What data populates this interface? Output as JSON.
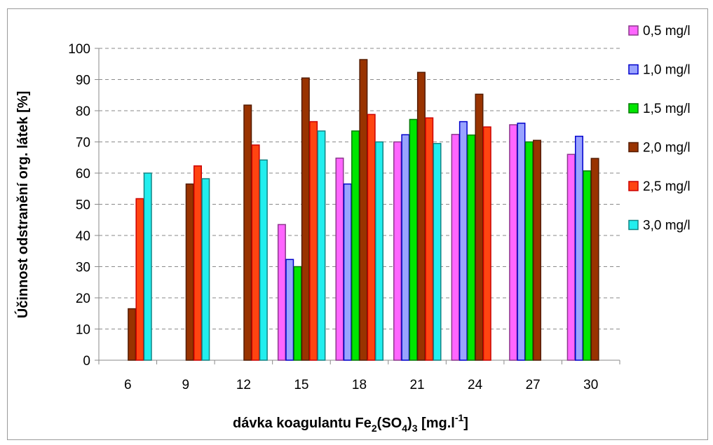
{
  "chart_data": {
    "type": "bar",
    "ylabel": "Účinnost odstranění org. látek [%]",
    "xlabel": {
      "parts": [
        "dávka koagulantu Fe",
        "2",
        "(SO",
        "4",
        ")",
        "3",
        " [mg.l",
        "-1",
        "]"
      ]
    },
    "ylim": [
      0,
      100
    ],
    "yticks": [
      0,
      10,
      20,
      30,
      40,
      50,
      60,
      70,
      80,
      90,
      100
    ],
    "grid": "horizontal-dashed",
    "legend_position": "right",
    "categories": [
      "6",
      "9",
      "12",
      "15",
      "18",
      "21",
      "24",
      "27",
      "30"
    ],
    "series": [
      {
        "name": "0,5 mg/l",
        "color": "#ff66ff",
        "values": [
          null,
          null,
          null,
          43.5,
          64.8,
          70.0,
          72.4,
          75.5,
          66.0
        ]
      },
      {
        "name": "1,0 mg/l",
        "color": "#99a3ff",
        "values": [
          null,
          null,
          null,
          32.3,
          56.5,
          72.3,
          76.5,
          76.0,
          71.8
        ]
      },
      {
        "name": "1,5 mg/l",
        "color": "#00e600",
        "values": [
          null,
          null,
          null,
          30.0,
          73.5,
          77.2,
          72.2,
          70.0,
          60.7
        ]
      },
      {
        "name": "2,0 mg/l",
        "color": "#993300",
        "values": [
          16.5,
          56.5,
          81.8,
          90.5,
          96.4,
          92.3,
          85.3,
          70.5,
          64.7
        ]
      },
      {
        "name": "2,5 mg/l",
        "color": "#ff4411",
        "values": [
          51.8,
          62.3,
          69.0,
          76.5,
          78.8,
          77.7,
          74.8,
          null,
          null
        ]
      },
      {
        "name": "3,0 mg/l",
        "color": "#22eeee",
        "values": [
          60.0,
          58.2,
          64.2,
          73.5,
          70.0,
          69.5,
          null,
          null,
          null
        ]
      }
    ]
  }
}
